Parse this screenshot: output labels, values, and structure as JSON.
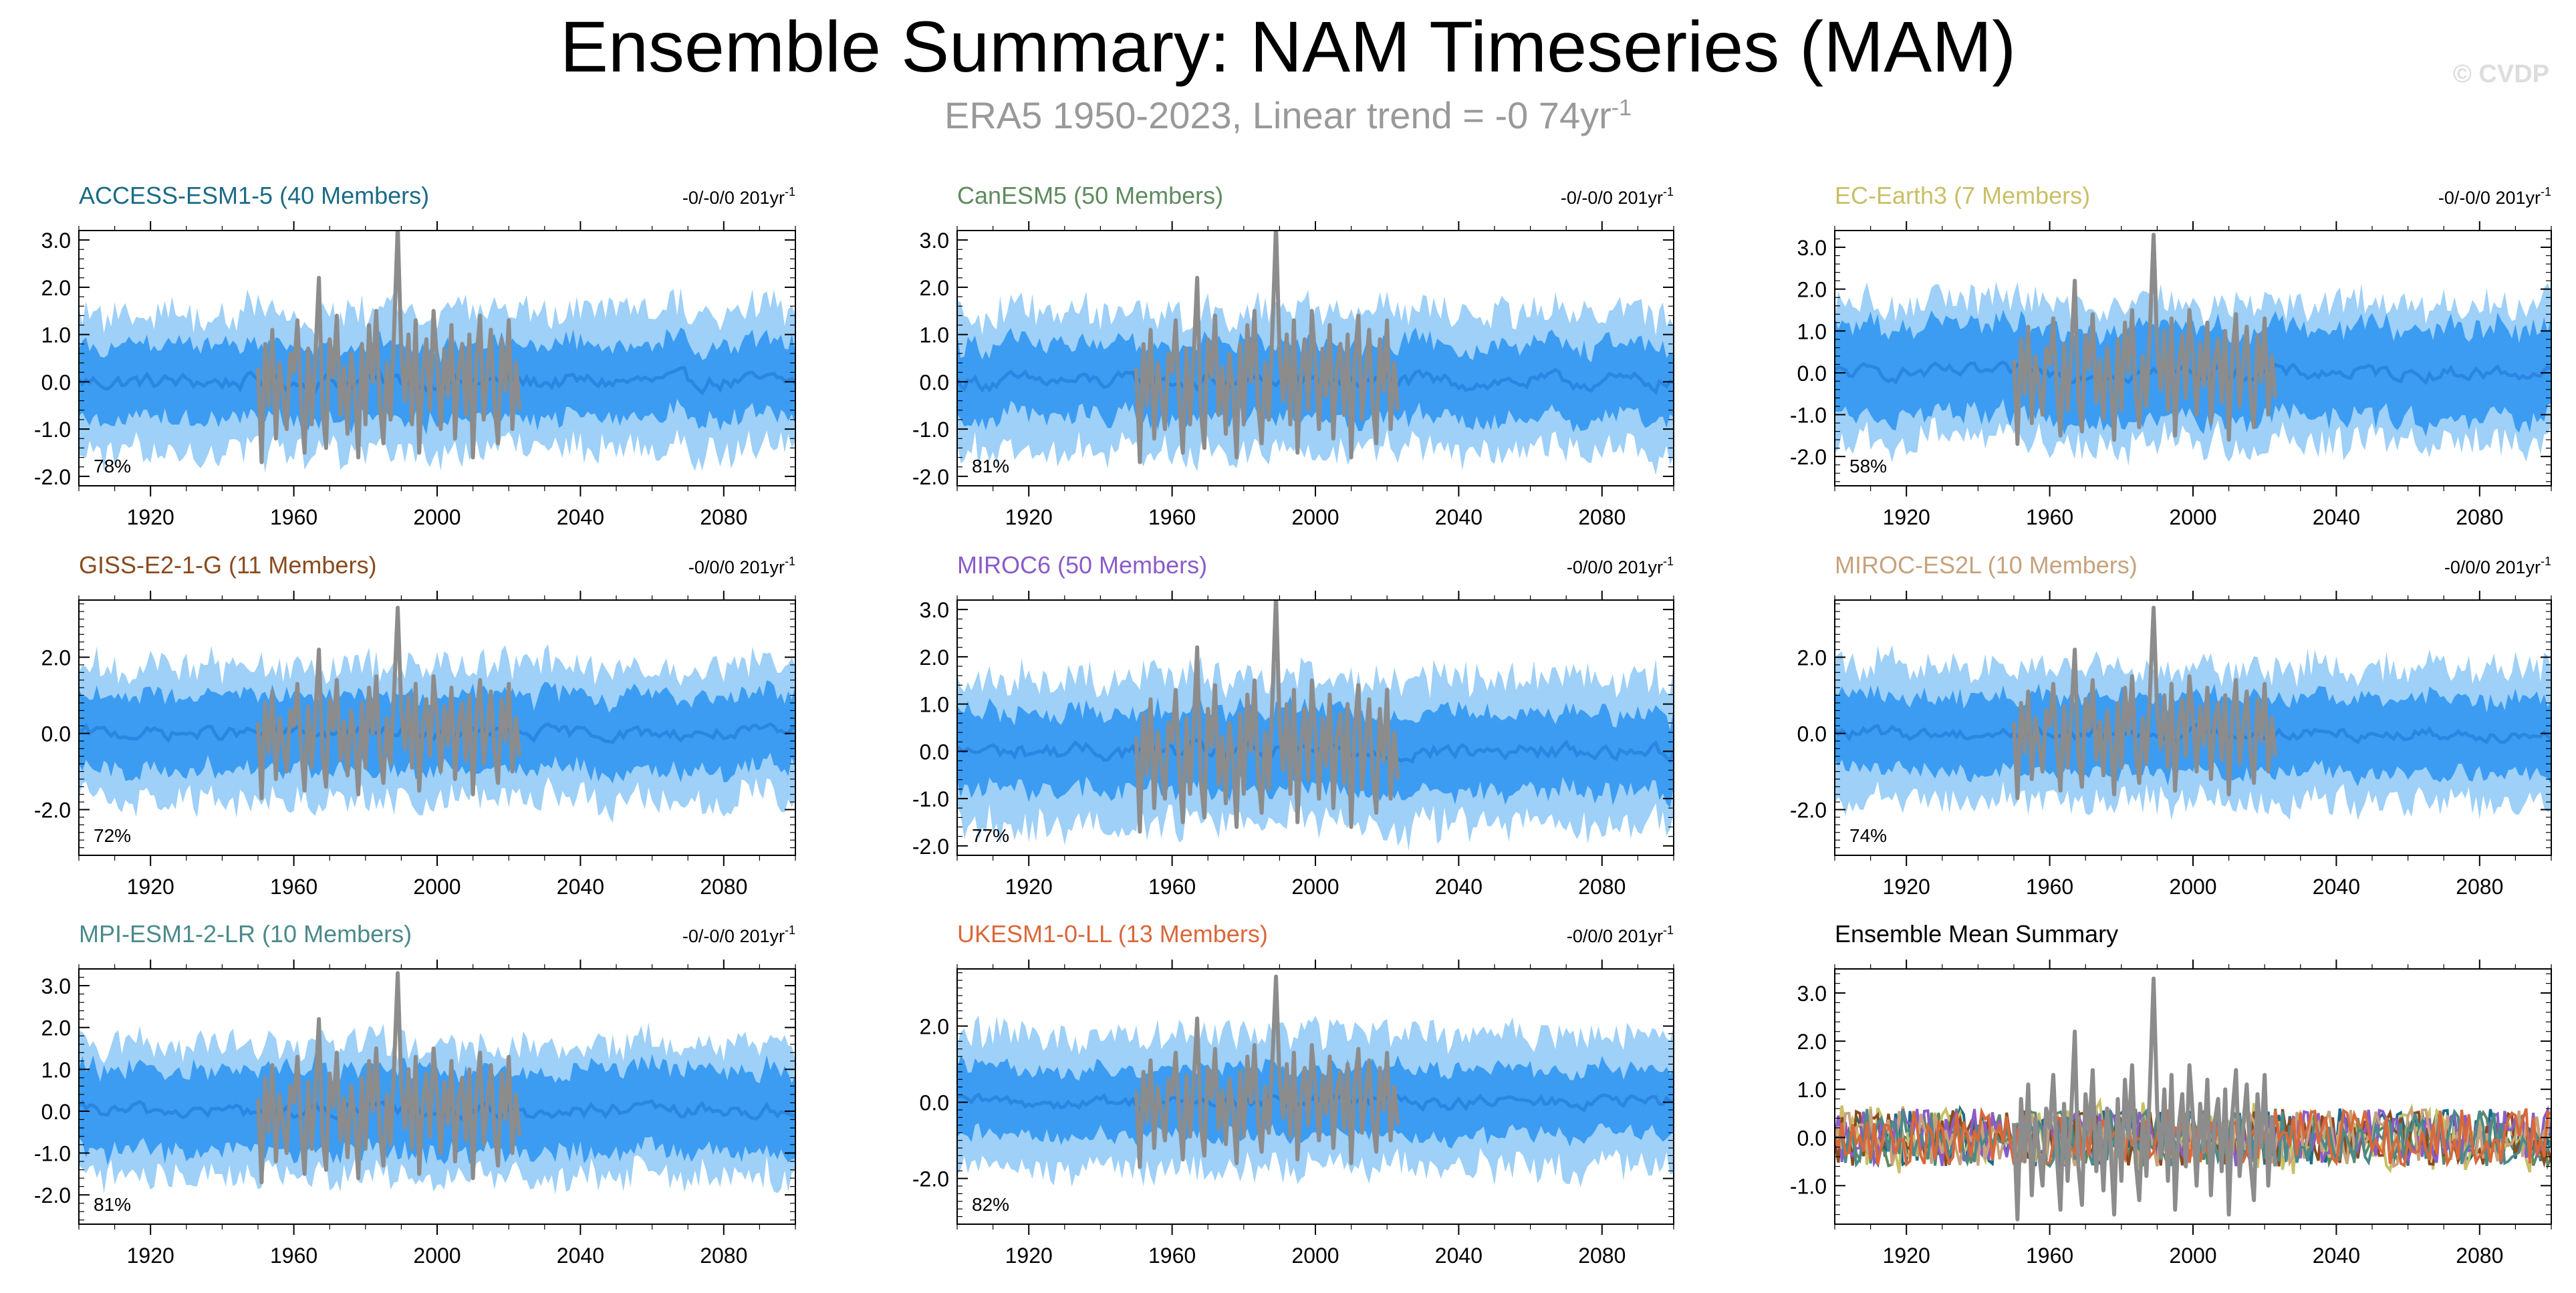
{
  "title": "Ensemble Summary: NAM Timeseries (MAM)",
  "subtitle": {
    "text": "ERA5 1950-2023, Linear trend = -0 74yr",
    "superscript": "-1"
  },
  "watermark": "© CVDP",
  "colors": {
    "obs": "#8c8c8c",
    "band_outer": "#9ed0f8",
    "band_inner": "#3b9cf2",
    "ensemble_mean": "#2a86e0",
    "axis": "#000000"
  },
  "chart_data": [
    {
      "type": "area",
      "model": "ACCESS-ESM1-5",
      "members": 40,
      "title": "ACCESS-ESM1-5 (40 Members)",
      "title_color": "#1a6b86",
      "trend_label": "-0/-0/0 201yr",
      "trend_sup": "-1",
      "percent": "78%",
      "xlim": [
        1900,
        2100
      ],
      "ylim": [
        -2.2,
        3.2
      ],
      "yticks": [
        "3.0",
        "2.0",
        "1.0",
        "0.0",
        "-1.0",
        "-2.0"
      ],
      "ytick_values": [
        3,
        2,
        1,
        0,
        -1,
        -2
      ],
      "xticks": [
        "1920",
        "1960",
        "2000",
        "2040",
        "2080"
      ],
      "xtick_values": [
        1920,
        1960,
        2000,
        2040,
        2080
      ],
      "outer_amp": 1.5,
      "inner_amp": 0.8
    },
    {
      "type": "area",
      "model": "CanESM5",
      "members": 50,
      "title": "CanESM5 (50 Members)",
      "title_color": "#5f8a5f",
      "trend_label": "-0/-0/0 201yr",
      "trend_sup": "-1",
      "percent": "81%",
      "xlim": [
        1900,
        2100
      ],
      "ylim": [
        -2.2,
        3.2
      ],
      "yticks": [
        "3.0",
        "2.0",
        "1.0",
        "0.0",
        "-1.0",
        "-2.0"
      ],
      "ytick_values": [
        3,
        2,
        1,
        0,
        -1,
        -2
      ],
      "xticks": [
        "1920",
        "1960",
        "2000",
        "2040",
        "2080"
      ],
      "xtick_values": [
        1920,
        1960,
        2000,
        2040,
        2080
      ],
      "outer_amp": 1.5,
      "inner_amp": 0.8
    },
    {
      "type": "area",
      "model": "EC-Earth3",
      "members": 7,
      "title": "EC-Earth3 (7 Members)",
      "title_color": "#c9bf66",
      "trend_label": "-0/-0/0 201yr",
      "trend_sup": "-1",
      "percent": "58%",
      "xlim": [
        1900,
        2100
      ],
      "ylim": [
        -2.7,
        3.4
      ],
      "yticks": [
        "3.0",
        "2.0",
        "1.0",
        "0.0",
        "-1.0",
        "-2.0"
      ],
      "ytick_values": [
        3,
        2,
        1,
        0,
        -1,
        -2
      ],
      "xticks": [
        "1920",
        "1960",
        "2000",
        "2040",
        "2080"
      ],
      "xtick_values": [
        1920,
        1960,
        2000,
        2040,
        2080
      ],
      "outer_amp": 1.7,
      "inner_amp": 1.1
    },
    {
      "type": "area",
      "model": "GISS-E2-1-G",
      "members": 11,
      "title": "GISS-E2-1-G (11 Members)",
      "title_color": "#8a4b1e",
      "trend_label": "-0/0/0 201yr",
      "trend_sup": "-1",
      "percent": "72%",
      "xlim": [
        1900,
        2100
      ],
      "ylim": [
        -3.2,
        3.5
      ],
      "yticks": [
        "2.0",
        "0.0",
        "-2.0"
      ],
      "ytick_values": [
        2,
        0,
        -2
      ],
      "xticks": [
        "1920",
        "1960",
        "2000",
        "2040",
        "2080"
      ],
      "xtick_values": [
        1920,
        1960,
        2000,
        2040,
        2080
      ],
      "outer_amp": 1.8,
      "inner_amp": 1.0
    },
    {
      "type": "area",
      "model": "MIROC6",
      "members": 50,
      "title": "MIROC6 (50 Members)",
      "title_color": "#8a5cc9",
      "trend_label": "-0/0/0 201yr",
      "trend_sup": "-1",
      "percent": "77%",
      "xlim": [
        1900,
        2100
      ],
      "ylim": [
        -2.2,
        3.2
      ],
      "yticks": [
        "3.0",
        "2.0",
        "1.0",
        "0.0",
        "-1.0",
        "-2.0"
      ],
      "ytick_values": [
        3,
        2,
        1,
        0,
        -1,
        -2
      ],
      "xticks": [
        "1920",
        "1960",
        "2000",
        "2040",
        "2080"
      ],
      "xtick_values": [
        1920,
        1960,
        2000,
        2040,
        2080
      ],
      "outer_amp": 1.6,
      "inner_amp": 0.85
    },
    {
      "type": "area",
      "model": "MIROC-ES2L",
      "members": 10,
      "title": "MIROC-ES2L (10 Members)",
      "title_color": "#c7a27c",
      "trend_label": "-0/0/0 201yr",
      "trend_sup": "-1",
      "percent": "74%",
      "xlim": [
        1900,
        2100
      ],
      "ylim": [
        -3.2,
        3.5
      ],
      "yticks": [
        "2.0",
        "0.0",
        "-2.0"
      ],
      "ytick_values": [
        2,
        0,
        -2
      ],
      "xticks": [
        "1920",
        "1960",
        "2000",
        "2040",
        "2080"
      ],
      "xtick_values": [
        1920,
        1960,
        2000,
        2040,
        2080
      ],
      "outer_amp": 1.8,
      "inner_amp": 1.0
    },
    {
      "type": "area",
      "model": "MPI-ESM1-2-LR",
      "members": 10,
      "title": "MPI-ESM1-2-LR (10 Members)",
      "title_color": "#4a8a8a",
      "trend_label": "-0/-0/0 201yr",
      "trend_sup": "-1",
      "percent": "81%",
      "xlim": [
        1900,
        2100
      ],
      "ylim": [
        -2.7,
        3.4
      ],
      "yticks": [
        "3.0",
        "2.0",
        "1.0",
        "0.0",
        "-1.0",
        "-2.0"
      ],
      "ytick_values": [
        3,
        2,
        1,
        0,
        -1,
        -2
      ],
      "xticks": [
        "1920",
        "1960",
        "2000",
        "2040",
        "2080"
      ],
      "xtick_values": [
        1920,
        1960,
        2000,
        2040,
        2080
      ],
      "outer_amp": 1.6,
      "inner_amp": 1.0
    },
    {
      "type": "area",
      "model": "UKESM1-0-LL",
      "members": 13,
      "title": "UKESM1-0-LL (13 Members)",
      "title_color": "#d9683a",
      "trend_label": "-0/0/0 201yr",
      "trend_sup": "-1",
      "percent": "82%",
      "xlim": [
        1900,
        2100
      ],
      "ylim": [
        -3.2,
        3.5
      ],
      "yticks": [
        "2.0",
        "0.0",
        "-2.0"
      ],
      "ytick_values": [
        2,
        0,
        -2
      ],
      "xticks": [
        "1920",
        "1960",
        "2000",
        "2040",
        "2080"
      ],
      "xtick_values": [
        1920,
        1960,
        2000,
        2040,
        2080
      ],
      "outer_amp": 1.8,
      "inner_amp": 0.9
    },
    {
      "type": "line",
      "model": "summary",
      "title": "Ensemble Mean Summary",
      "title_color": "#000000",
      "trend_label": "",
      "trend_sup": "",
      "percent": "",
      "xlim": [
        1900,
        2100
      ],
      "ylim": [
        -1.8,
        3.5
      ],
      "yticks": [
        "3.0",
        "2.0",
        "1.0",
        "0.0",
        "-1.0"
      ],
      "ytick_values": [
        3,
        2,
        1,
        0,
        -1
      ],
      "xticks": [
        "1920",
        "1960",
        "2000",
        "2040",
        "2080"
      ],
      "xtick_values": [
        1920,
        1960,
        2000,
        2040,
        2080
      ],
      "mean_colors": [
        "#1a6b86",
        "#5f8a5f",
        "#c9bf66",
        "#8a4b1e",
        "#8a5cc9",
        "#c7a27c",
        "#4a8a8a",
        "#d9683a"
      ]
    }
  ],
  "observations": {
    "name": "ERA5",
    "years": [
      1950,
      1951,
      1952,
      1953,
      1954,
      1955,
      1956,
      1957,
      1958,
      1959,
      1960,
      1961,
      1962,
      1963,
      1964,
      1965,
      1966,
      1967,
      1968,
      1969,
      1970,
      1971,
      1972,
      1973,
      1974,
      1975,
      1976,
      1977,
      1978,
      1979,
      1980,
      1981,
      1982,
      1983,
      1984,
      1985,
      1986,
      1987,
      1988,
      1989,
      1990,
      1991,
      1992,
      1993,
      1994,
      1995,
      1996,
      1997,
      1998,
      1999,
      2000,
      2001,
      2002,
      2003,
      2004,
      2005,
      2006,
      2007,
      2008,
      2009,
      2010,
      2011,
      2012,
      2013,
      2014,
      2015,
      2016,
      2017,
      2018,
      2019,
      2020,
      2021,
      2022,
      2023
    ],
    "values": [
      0.3,
      -1.7,
      0.8,
      -0.5,
      1.1,
      -1.2,
      0.4,
      -0.3,
      -1.0,
      0.6,
      0.2,
      1.3,
      -0.4,
      -1.5,
      0.7,
      -0.9,
      0.5,
      2.2,
      -0.6,
      -1.4,
      0.9,
      0.1,
      1.4,
      -0.7,
      0.3,
      -1.1,
      0.6,
      -0.2,
      -1.6,
      0.8,
      -0.9,
      1.2,
      0.0,
      1.5,
      -0.5,
      -1.3,
      0.4,
      -0.8,
      1.1,
      3.3,
      0.6,
      -0.4,
      1.0,
      -0.9,
      1.3,
      -1.5,
      0.2,
      0.9,
      -0.6,
      1.5,
      0.4,
      -1.0,
      0.7,
      -0.3,
      1.2,
      -1.2,
      0.3,
      0.8,
      -0.7,
      1.0,
      -1.6,
      0.5,
      1.4,
      -0.8,
      0.2,
      1.1,
      -0.5,
      -1.3,
      0.9,
      -0.2,
      1.3,
      -1.0,
      0.4,
      -0.6
    ]
  }
}
